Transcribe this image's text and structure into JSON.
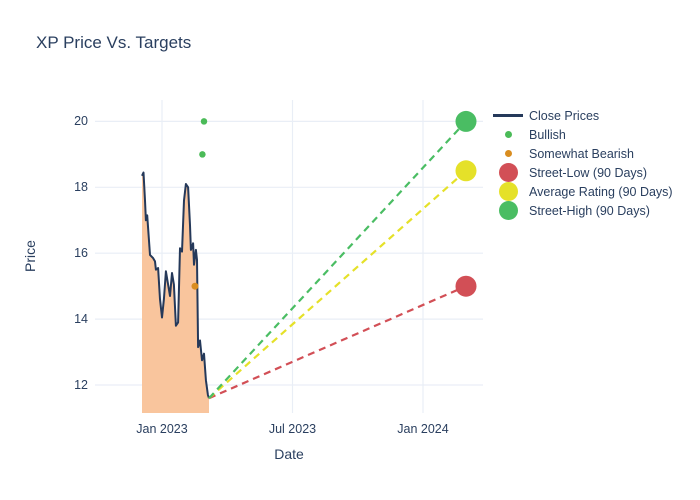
{
  "legend": {
    "items": [
      {
        "label": "Close Prices",
        "marker": "line",
        "color": "#25395a",
        "icon": "line-swatch-icon"
      },
      {
        "label": "Bullish",
        "marker": "dot-small",
        "color": "#4bbb58",
        "icon": "green-dot-icon"
      },
      {
        "label": "Somewhat Bearish",
        "marker": "dot-small",
        "color": "#d98d20",
        "icon": "orange-dot-icon"
      },
      {
        "label": "Street-Low (90 Days)",
        "marker": "dot-large",
        "color": "#d24f56",
        "icon": "red-circle-icon"
      },
      {
        "label": "Average Rating (90 Days)",
        "marker": "dot-large",
        "color": "#e5e129",
        "icon": "yellow-circle-icon"
      },
      {
        "label": "Street-High (90 Days)",
        "marker": "dot-large",
        "color": "#4abd63",
        "icon": "green-circle-icon"
      }
    ]
  },
  "chart_data": {
    "type": "line",
    "title": "XP Price Vs. Targets",
    "xlabel": "Date",
    "ylabel": "Price",
    "x_unit": "months since Jan 2023 (Jan 2023 = 0)",
    "xlim": [
      -3.08,
      14.76
    ],
    "ylim": [
      11.15,
      20.65
    ],
    "grid": true,
    "legend_position": "right",
    "layout": {
      "grid_color": "#e9eef6",
      "text_color": "#2a3f5f",
      "background": "#ffffff"
    },
    "xticks": [
      {
        "v": 0,
        "label": "Jan 2023"
      },
      {
        "v": 6,
        "label": "Jul 2023"
      },
      {
        "v": 12,
        "label": "Jan 2024"
      }
    ],
    "yticks": [
      12,
      14,
      16,
      18,
      20
    ],
    "series": [
      {
        "name": "Close Prices",
        "type": "line+fill",
        "color": "#25395a",
        "fill": "#f9c59d",
        "width": 2,
        "marker_name": "close-price-line",
        "points": [
          [
            -0.92,
            18.35
          ],
          [
            -0.85,
            18.45
          ],
          [
            -0.78,
            17.6
          ],
          [
            -0.74,
            17.0
          ],
          [
            -0.68,
            17.15
          ],
          [
            -0.55,
            15.95
          ],
          [
            -0.41,
            15.85
          ],
          [
            -0.32,
            15.75
          ],
          [
            -0.28,
            15.5
          ],
          [
            -0.18,
            15.55
          ],
          [
            -0.09,
            14.6
          ],
          [
            0.0,
            14.05
          ],
          [
            0.09,
            14.6
          ],
          [
            0.18,
            15.45
          ],
          [
            0.28,
            15.05
          ],
          [
            0.37,
            14.7
          ],
          [
            0.46,
            15.4
          ],
          [
            0.55,
            15.05
          ],
          [
            0.64,
            13.8
          ],
          [
            0.74,
            13.9
          ],
          [
            0.83,
            16.15
          ],
          [
            0.92,
            16.05
          ],
          [
            1.01,
            17.6
          ],
          [
            1.1,
            18.1
          ],
          [
            1.2,
            18.0
          ],
          [
            1.29,
            16.85
          ],
          [
            1.33,
            16.1
          ],
          [
            1.43,
            16.3
          ],
          [
            1.47,
            15.65
          ],
          [
            1.56,
            16.1
          ],
          [
            1.61,
            15.8
          ],
          [
            1.66,
            13.15
          ],
          [
            1.75,
            13.35
          ],
          [
            1.84,
            12.75
          ],
          [
            1.93,
            12.95
          ],
          [
            2.02,
            12.15
          ],
          [
            2.11,
            11.7
          ],
          [
            2.16,
            11.6
          ]
        ]
      },
      {
        "name": "Bullish",
        "type": "scatter",
        "color": "#4bbb58",
        "size": 6.5,
        "marker_name": "bullish-marker",
        "points": [
          [
            1.93,
            20.0
          ],
          [
            1.86,
            19.0
          ]
        ]
      },
      {
        "name": "Somewhat Bearish",
        "type": "scatter",
        "color": "#d98d20",
        "size": 7,
        "marker_name": "somewhat-bearish-marker",
        "points": [
          [
            1.52,
            15.0
          ]
        ]
      },
      {
        "name": "Street-Low (90 Days)",
        "type": "target",
        "color": "#d24f56",
        "size": 21,
        "marker_name": "street-low-marker",
        "dash_from": [
          2.16,
          11.6
        ],
        "point": [
          13.98,
          15.0
        ]
      },
      {
        "name": "Average Rating (90 Days)",
        "type": "target",
        "color": "#e5e129",
        "size": 21,
        "marker_name": "average-rating-marker",
        "dash_from": [
          2.16,
          11.6
        ],
        "point": [
          13.98,
          18.5
        ]
      },
      {
        "name": "Street-High (90 Days)",
        "type": "target",
        "color": "#4abd63",
        "size": 21,
        "marker_name": "street-high-marker",
        "dash_from": [
          2.16,
          11.6
        ],
        "point": [
          13.98,
          20.0
        ]
      }
    ]
  }
}
